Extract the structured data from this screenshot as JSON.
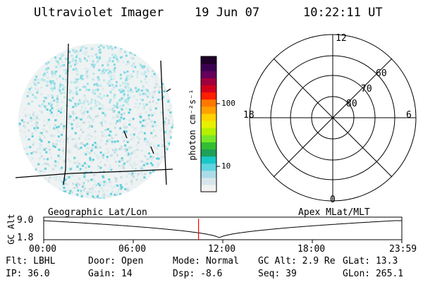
{
  "header": {
    "title": "Ultraviolet Imager",
    "date": "19 Jun 07",
    "time": "10:22:11 UT"
  },
  "colorbar": {
    "unit_label": "photon cm⁻²s⁻¹",
    "ticks": [
      {
        "label": "100",
        "value": 100
      },
      {
        "label": "10",
        "value": 10
      }
    ],
    "colors": [
      "#f2f2f2",
      "#d8e6ec",
      "#aadde8",
      "#60d4e0",
      "#19c8c8",
      "#1ea05a",
      "#32be32",
      "#78e628",
      "#b4f000",
      "#e6f000",
      "#ffd200",
      "#ffa000",
      "#ff7800",
      "#ff1e00",
      "#d2001e",
      "#a0003c",
      "#64005a",
      "#3c0050",
      "#1e0028"
    ]
  },
  "polar_grid": {
    "mlt_labels": [
      {
        "label": "12",
        "mlt": 12
      },
      {
        "label": "18",
        "mlt": 18
      },
      {
        "label": "6",
        "mlt": 6
      },
      {
        "label": "0",
        "mlt": 0
      }
    ],
    "lat_labels": [
      "60",
      "70",
      "80"
    ]
  },
  "left_caption": "Geographic Lat/Lon",
  "right_caption": "Apex MLat/MLT",
  "timeline": {
    "ylabel": "GC Alt",
    "y_ticks": [
      "9.0",
      "1.8"
    ],
    "x_ticks": [
      "00:00",
      "06:00",
      "12:00",
      "18:00",
      "23:59"
    ],
    "marker_time": "10:22"
  },
  "info": {
    "flt": "Flt: LBHL",
    "door": "Door: Open",
    "mode": "Mode: Normal",
    "gc_alt": "GC Alt: 2.9 Re",
    "glat": "GLat:  13.3",
    "ip": "IP: 36.0",
    "gain": "Gain: 14",
    "dsp": "Dsp:    -8.6",
    "seq": "Seq: 39",
    "glon": "GLon: 265.1"
  },
  "colors": {
    "marker": "#ff0000",
    "ink": "#000000"
  }
}
